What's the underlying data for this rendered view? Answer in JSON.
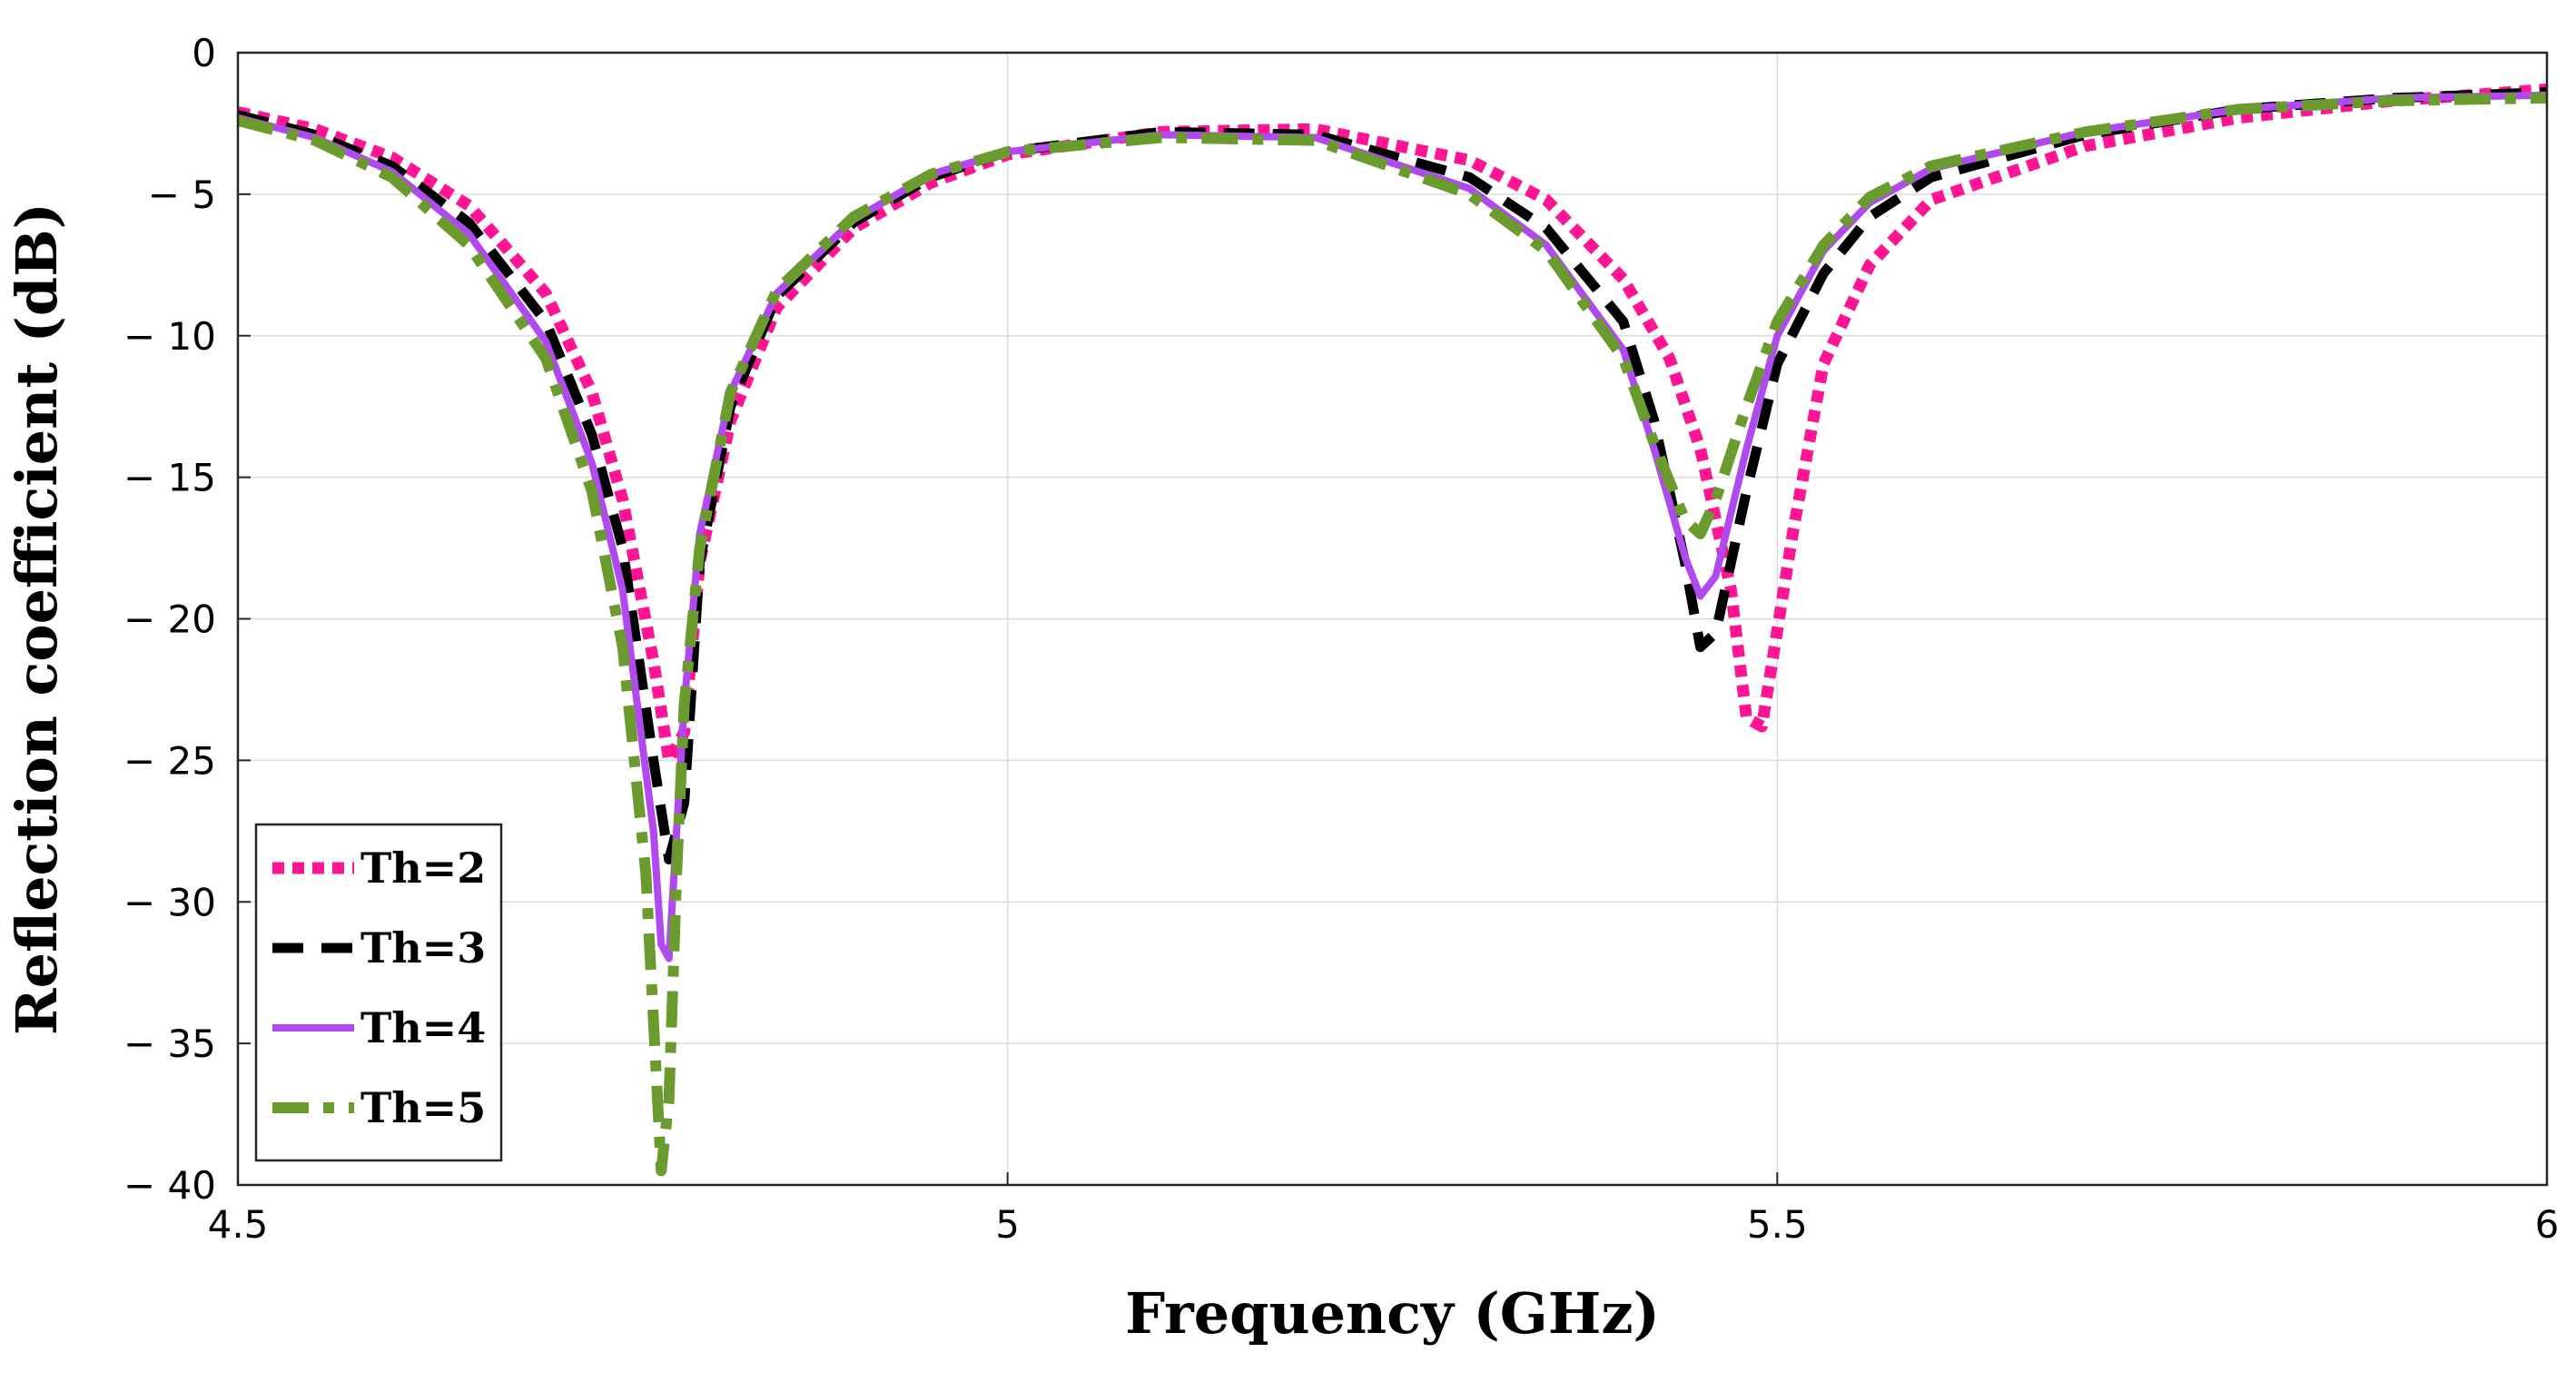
{
  "chart_data": {
    "type": "line",
    "title": "",
    "xlabel": "Frequency (GHz)",
    "ylabel": "Reflection coefficient (dB)",
    "xlim": [
      4.5,
      6
    ],
    "ylim": [
      -40,
      0
    ],
    "xticks": [
      4.5,
      5,
      5.5,
      6
    ],
    "xtick_labels": [
      "4.5",
      "5",
      "5.5",
      "6"
    ],
    "yticks": [
      0,
      -5,
      -10,
      -15,
      -20,
      -25,
      -30,
      -35,
      -40
    ],
    "ytick_labels": [
      "0",
      "− 5",
      "− 10",
      "− 15",
      "− 20",
      "− 25",
      "− 30",
      "− 35",
      "− 40"
    ],
    "grid": true,
    "legend_position": "bottom-left",
    "series": [
      {
        "name": "Th=2",
        "color": "#ff1493",
        "style": "dotted",
        "x": [
          4.5,
          4.55,
          4.6,
          4.65,
          4.7,
          4.73,
          4.75,
          4.77,
          4.78,
          4.79,
          4.8,
          4.82,
          4.85,
          4.9,
          4.95,
          5.0,
          5.1,
          5.2,
          5.3,
          5.35,
          5.4,
          5.43,
          5.45,
          5.47,
          5.48,
          5.49,
          5.51,
          5.53,
          5.56,
          5.6,
          5.7,
          5.8,
          5.9,
          6.0
        ],
        "y": [
          -2.1,
          -2.7,
          -3.7,
          -5.4,
          -8.5,
          -12.0,
          -15.8,
          -21.5,
          -25.0,
          -24.0,
          -18.0,
          -13.0,
          -9.0,
          -6.2,
          -4.6,
          -3.6,
          -2.8,
          -2.7,
          -3.8,
          -5.2,
          -8.0,
          -10.8,
          -14.0,
          -19.0,
          -23.5,
          -23.8,
          -17.0,
          -11.0,
          -7.5,
          -5.2,
          -3.3,
          -2.3,
          -1.7,
          -1.3
        ]
      },
      {
        "name": "Th=3",
        "color": "#000000",
        "style": "dashed",
        "x": [
          4.5,
          4.55,
          4.6,
          4.65,
          4.7,
          4.73,
          4.75,
          4.77,
          4.78,
          4.79,
          4.8,
          4.82,
          4.85,
          4.9,
          4.95,
          5.0,
          5.1,
          5.2,
          5.3,
          5.35,
          5.4,
          5.42,
          5.44,
          5.45,
          5.46,
          5.48,
          5.5,
          5.53,
          5.56,
          5.6,
          5.7,
          5.8,
          5.9,
          6.0
        ],
        "y": [
          -2.2,
          -2.9,
          -4.0,
          -6.0,
          -9.5,
          -13.5,
          -17.5,
          -25.0,
          -28.5,
          -26.5,
          -18.0,
          -12.5,
          -8.6,
          -6.0,
          -4.4,
          -3.5,
          -2.8,
          -2.9,
          -4.4,
          -6.2,
          -9.5,
          -13.0,
          -18.0,
          -21.0,
          -20.5,
          -15.5,
          -11.0,
          -7.8,
          -5.8,
          -4.4,
          -2.9,
          -2.0,
          -1.6,
          -1.4
        ]
      },
      {
        "name": "Th=4",
        "color": "#b04af0",
        "style": "solid",
        "x": [
          4.5,
          4.55,
          4.6,
          4.65,
          4.7,
          4.73,
          4.75,
          4.77,
          4.775,
          4.78,
          4.79,
          4.8,
          4.82,
          4.85,
          4.9,
          4.95,
          5.0,
          5.1,
          5.2,
          5.3,
          5.35,
          5.4,
          5.42,
          5.44,
          5.45,
          5.46,
          5.48,
          5.5,
          5.53,
          5.56,
          5.6,
          5.7,
          5.8,
          5.9,
          6.0
        ],
        "y": [
          -2.3,
          -3.0,
          -4.2,
          -6.4,
          -10.2,
          -14.5,
          -19.0,
          -27.5,
          -31.5,
          -32.0,
          -23.0,
          -17.0,
          -12.0,
          -8.5,
          -5.9,
          -4.3,
          -3.5,
          -2.9,
          -3.0,
          -4.8,
          -6.8,
          -10.5,
          -14.0,
          -17.8,
          -19.2,
          -18.5,
          -14.0,
          -10.0,
          -7.0,
          -5.3,
          -4.1,
          -2.8,
          -2.0,
          -1.6,
          -1.5
        ]
      },
      {
        "name": "Th=5",
        "color": "#6b9b2f",
        "style": "dash-dot",
        "x": [
          4.5,
          4.55,
          4.6,
          4.65,
          4.7,
          4.73,
          4.75,
          4.765,
          4.775,
          4.78,
          4.785,
          4.79,
          4.8,
          4.82,
          4.85,
          4.9,
          4.95,
          5.0,
          5.1,
          5.2,
          5.3,
          5.35,
          5.4,
          5.42,
          5.44,
          5.45,
          5.46,
          5.48,
          5.5,
          5.53,
          5.56,
          5.6,
          5.7,
          5.8,
          5.9,
          6.0
        ],
        "y": [
          -2.4,
          -3.1,
          -4.4,
          -6.8,
          -10.8,
          -15.5,
          -21.0,
          -29.0,
          -39.5,
          -37.0,
          -29.0,
          -23.0,
          -17.5,
          -12.0,
          -8.4,
          -5.8,
          -4.3,
          -3.5,
          -3.0,
          -3.1,
          -5.0,
          -7.0,
          -10.8,
          -13.8,
          -16.5,
          -17.0,
          -15.8,
          -12.5,
          -9.5,
          -6.8,
          -5.1,
          -4.0,
          -2.8,
          -2.0,
          -1.7,
          -1.6
        ]
      }
    ]
  }
}
